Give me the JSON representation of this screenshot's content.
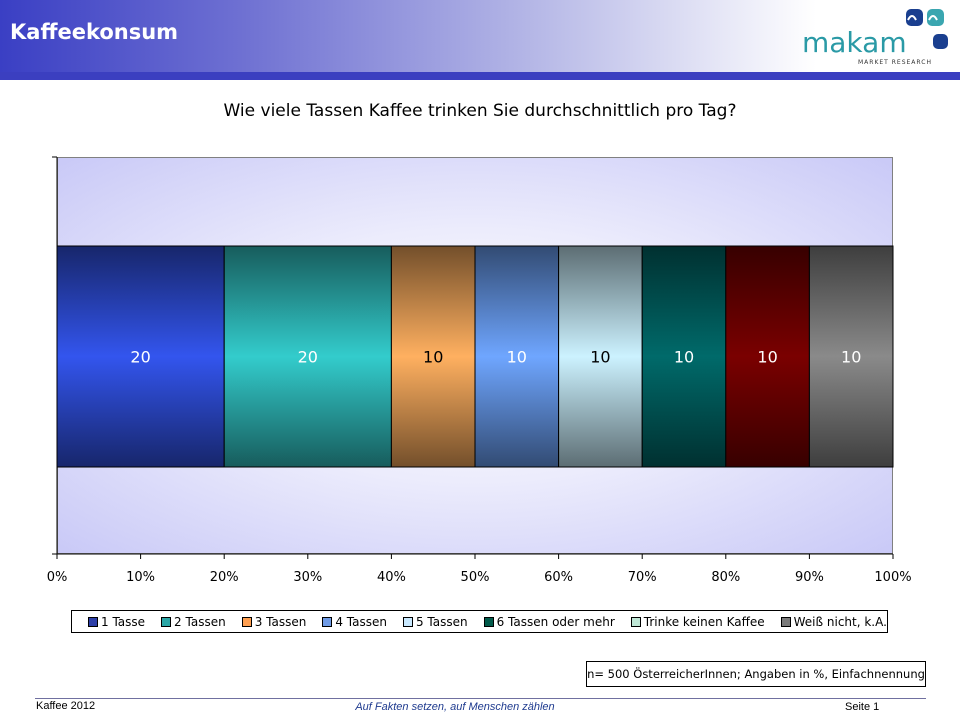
{
  "header": {
    "title": "Kaffeekonsum",
    "logo_text": "makam",
    "logo_subtext": "MARKET RESEARCH"
  },
  "chart_data": {
    "type": "bar",
    "orientation": "horizontal-stacked-100",
    "title": "Wie viele Tassen Kaffee trinken Sie durchschnittlich pro Tag?",
    "xlim": [
      0,
      100
    ],
    "x_ticks": [
      "0%",
      "10%",
      "20%",
      "30%",
      "40%",
      "50%",
      "60%",
      "70%",
      "80%",
      "90%",
      "100%"
    ],
    "series": [
      {
        "name": "1 Tasse",
        "value": 20,
        "color": "#3355ee"
      },
      {
        "name": "2 Tassen",
        "value": 20,
        "color": "#33cccc"
      },
      {
        "name": "3 Tassen",
        "value": 10,
        "color": "#ffb060"
      },
      {
        "name": "4 Tassen",
        "value": 10,
        "color": "#6fa6ff"
      },
      {
        "name": "5 Tassen",
        "value": 10,
        "color": "#ccf2ff"
      },
      {
        "name": "6 Tassen oder mehr",
        "value": 10,
        "color": "#006a6a"
      },
      {
        "name": "Trinke keinen Kaffee",
        "value": 10,
        "color": "#7a0000"
      },
      {
        "name": "Weiß nicht, k.A.",
        "value": 10,
        "color": "#8a8a8a"
      }
    ],
    "legend": {
      "position": "bottom"
    }
  },
  "legend_swatches": [
    "#2d3fa8",
    "#2aa6a6",
    "#ff9f50",
    "#6f9be6",
    "#c9e9ff",
    "#005a4a",
    "#bfe7d6",
    "#7a7a7a"
  ],
  "note": "n= 500 ÖsterreicherInnen; Angaben in %, Einfachnennung",
  "footer": {
    "left": "Kaffee 2012",
    "center": "Auf Fakten setzen, auf Menschen zählen",
    "right": "Seite 1"
  }
}
